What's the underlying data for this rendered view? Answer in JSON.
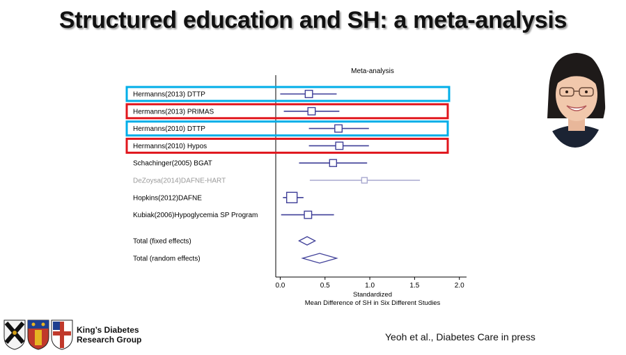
{
  "slide": {
    "title": "Structured education and SH: a meta-analysis",
    "citation": "Yeoh et al., Diabetes Care in press",
    "group_name_line1": "King’s Diabetes",
    "group_name_line2": "Research Group",
    "photo_icon": "presenter-photo",
    "logo_icons": [
      "college-crest-icon",
      "kings-crest-icon",
      "hospital-crest-icon"
    ],
    "highlight_colors": {
      "blue": "#00aee8",
      "red": "#e0161d"
    }
  },
  "chart_data": {
    "type": "forest",
    "title": "Meta-analysis",
    "xlabel_line1": "Standardized",
    "xlabel_line2": "Mean Difference of SH in Six Different Studies",
    "xlim": [
      -0.05,
      2.08
    ],
    "xticks": [
      "0.0",
      "0.5",
      "1.0",
      "1.5",
      "2.0"
    ],
    "xtick_values": [
      0,
      0.5,
      1,
      1.5,
      2
    ],
    "mark_color": "#3f3f98",
    "faded_color": "#a9a9cf",
    "studies": [
      {
        "label": "Hermanns(2013) DTTP",
        "est": 0.32,
        "lo": 0.0,
        "hi": 0.63,
        "weight": 0.55,
        "highlight": "blue"
      },
      {
        "label": "Hermanns(2013) PRIMAS",
        "est": 0.35,
        "lo": 0.04,
        "hi": 0.66,
        "weight": 0.55,
        "highlight": "red"
      },
      {
        "label": "Hermanns(2010) DTTP",
        "est": 0.65,
        "lo": 0.32,
        "hi": 0.99,
        "weight": 0.55,
        "highlight": "blue"
      },
      {
        "label": "Hermanns(2010) Hypos",
        "est": 0.66,
        "lo": 0.32,
        "hi": 0.99,
        "weight": 0.55,
        "highlight": "red"
      },
      {
        "label": "Schachinger(2005) BGAT",
        "est": 0.59,
        "lo": 0.21,
        "hi": 0.97,
        "weight": 0.5,
        "highlight": ""
      },
      {
        "label": "DeZoysa(2014)DAFNE-HART",
        "est": 0.94,
        "lo": 0.33,
        "hi": 1.56,
        "weight": 0.3,
        "highlight": "",
        "faded": true
      },
      {
        "label": "Hopkins(2012)DAFNE",
        "est": 0.13,
        "lo": 0.03,
        "hi": 0.26,
        "weight": 1.0,
        "highlight": ""
      },
      {
        "label": "Kubiak(2006)Hypoglycemia SP Program",
        "est": 0.31,
        "lo": 0.01,
        "hi": 0.6,
        "weight": 0.55,
        "highlight": ""
      }
    ],
    "totals": [
      {
        "label": "Total (fixed effects)",
        "est": 0.3,
        "lo": 0.21,
        "hi": 0.39
      },
      {
        "label": "Total (random effects)",
        "est": 0.44,
        "lo": 0.25,
        "hi": 0.63
      }
    ]
  }
}
